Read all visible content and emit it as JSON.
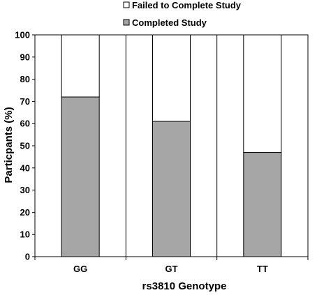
{
  "chart_data": {
    "type": "bar",
    "stacked": true,
    "categories": [
      "GG",
      "GT",
      "TT"
    ],
    "series": [
      {
        "name": "Completed Study",
        "values": [
          72,
          61,
          47
        ],
        "color": "#a6a6a6"
      },
      {
        "name": "Failed to Complete Study",
        "values": [
          28,
          39,
          53
        ],
        "color": "#ffffff"
      }
    ],
    "xlabel": "rs3810 Genotype",
    "ylabel": "Particpants (%)",
    "ylim": [
      0,
      100
    ],
    "yticks": [
      "0",
      "10",
      "20",
      "30",
      "40",
      "50",
      "60",
      "70",
      "80",
      "90",
      "100"
    ],
    "grid": "vertical",
    "legend_position": "top"
  }
}
